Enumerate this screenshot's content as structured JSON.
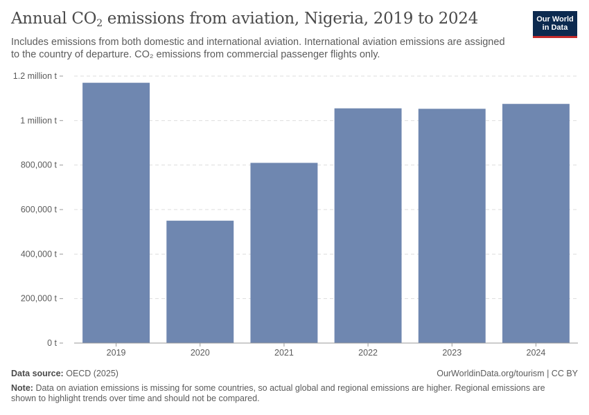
{
  "header": {
    "title_main": "Annual CO",
    "title_sub": "2",
    "title_rest": " emissions from aviation, Nigeria, 2019 to 2024",
    "subtitle_line1": "Includes emissions from both domestic and international aviation. International aviation emissions are assigned",
    "subtitle_line2": "to the country of departure. CO₂ emissions from commercial passenger flights only."
  },
  "logo": {
    "line1": "Our World",
    "line2": "in Data"
  },
  "colors": {
    "bar": "#6f87b0",
    "grid": "#dddddd",
    "axis": "#999999",
    "text": "#5b5b5b"
  },
  "chart_data": {
    "type": "bar",
    "title": "Annual CO₂ emissions from aviation, Nigeria, 2019 to 2024",
    "categories": [
      "2019",
      "2020",
      "2021",
      "2022",
      "2023",
      "2024"
    ],
    "values": [
      1170000,
      550000,
      810000,
      1055000,
      1053000,
      1075000
    ],
    "ylim": [
      0,
      1200000
    ],
    "yticks": [
      0,
      200000,
      400000,
      600000,
      800000,
      1000000,
      1200000
    ],
    "ytick_labels": [
      "0 t",
      "200,000 t",
      "400,000 t",
      "600,000 t",
      "800,000 t",
      "1 million t",
      "1.2 million t"
    ],
    "xlabel": "",
    "ylabel": ""
  },
  "footer": {
    "source_label": "Data source:",
    "source_value": "OECD (2025)",
    "url": "OurWorldinData.org/tourism | CC BY",
    "note_label": "Note:",
    "note_text": "Data on aviation emissions is missing for some countries, so actual global and regional emissions are higher. Regional emissions are shown to highlight trends over time and should not be compared."
  }
}
